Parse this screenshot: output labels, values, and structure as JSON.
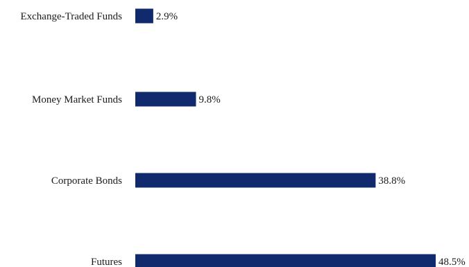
{
  "chart_data": {
    "type": "bar",
    "orientation": "horizontal",
    "categories": [
      "Exchange-Traded Funds",
      "Money Market Funds",
      "Corporate Bonds",
      "Futures"
    ],
    "values": [
      2.9,
      9.8,
      38.8,
      48.5
    ],
    "value_labels": [
      "2.9%",
      "9.8%",
      "38.8%",
      "48.5%"
    ],
    "unit": "%",
    "title": "",
    "xlabel": "",
    "ylabel": "",
    "xlim": [
      0,
      48.5
    ],
    "grid": false,
    "legend": "none",
    "bar_color": "#112a6e"
  }
}
